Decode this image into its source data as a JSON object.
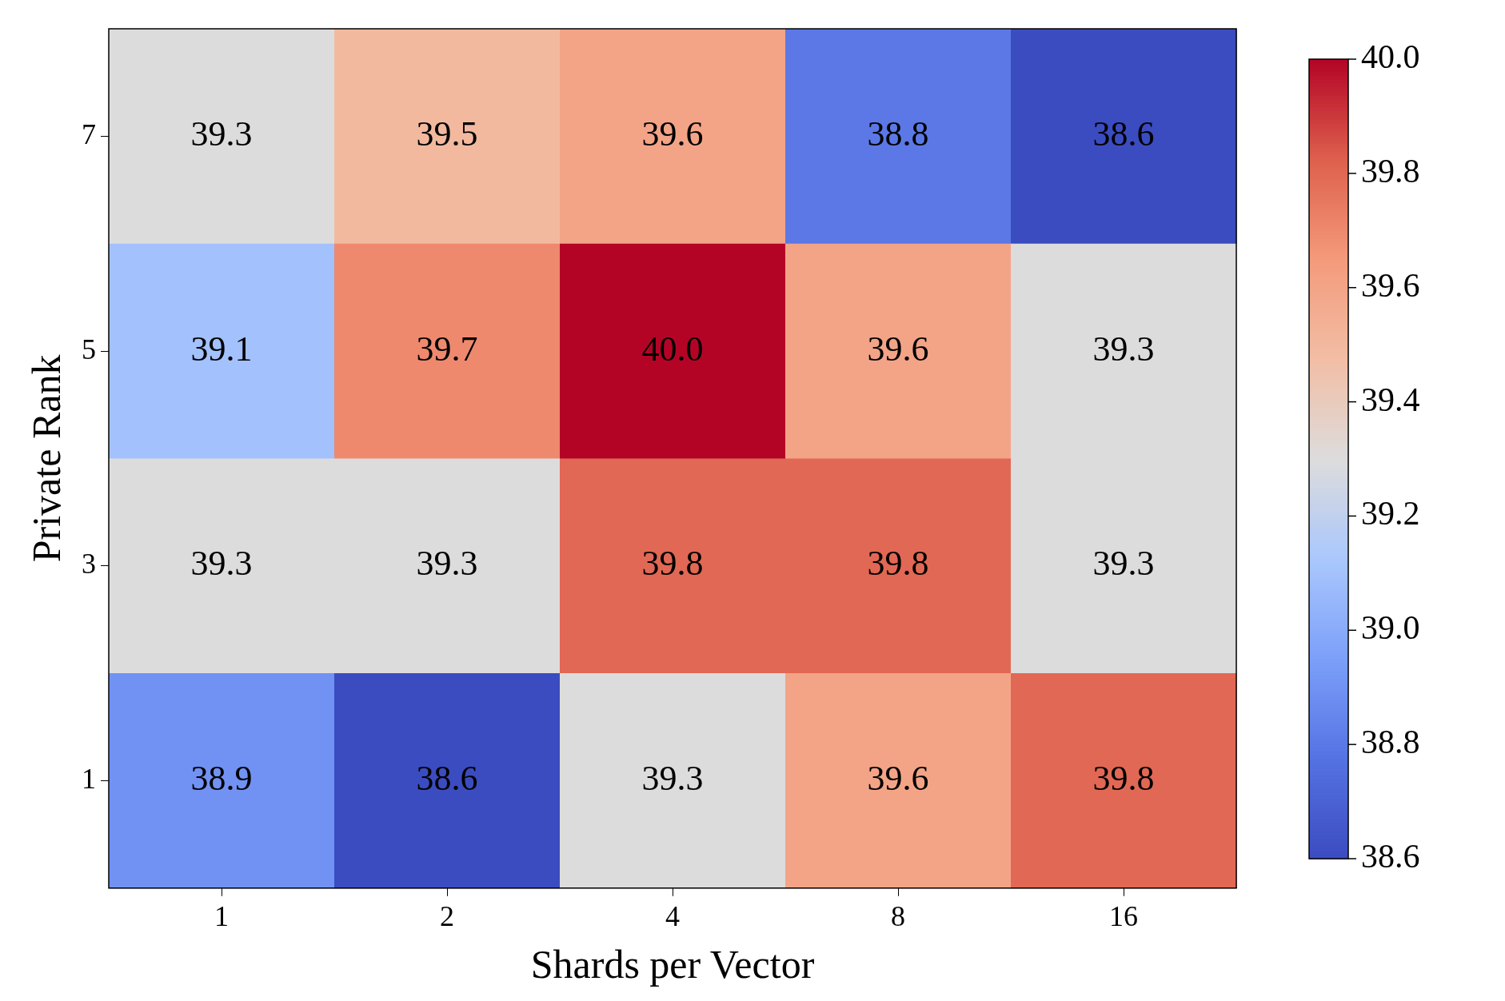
{
  "chart_data": {
    "type": "heatmap",
    "xlabel": "Shards per Vector",
    "ylabel": "Private Rank",
    "categories": [
      "1",
      "2",
      "4",
      "8",
      "16"
    ],
    "y_categories": [
      "7",
      "5",
      "3",
      "1"
    ],
    "cells": [
      [
        39.3,
        39.5,
        39.6,
        38.8,
        38.6
      ],
      [
        39.1,
        39.7,
        40.0,
        39.6,
        39.3
      ],
      [
        39.3,
        39.3,
        39.8,
        39.8,
        39.3
      ],
      [
        38.9,
        38.6,
        39.3,
        39.6,
        39.8
      ]
    ],
    "cell_labels": [
      [
        "39.3",
        "39.5",
        "39.6",
        "38.8",
        "38.6"
      ],
      [
        "39.1",
        "39.7",
        "40.0",
        "39.6",
        "39.3"
      ],
      [
        "39.3",
        "39.3",
        "39.8",
        "39.8",
        "39.3"
      ],
      [
        "38.9",
        "38.6",
        "39.3",
        "39.6",
        "39.8"
      ]
    ],
    "clim": [
      38.6,
      40.0
    ],
    "cticks": [
      38.6,
      38.8,
      {
        "value": 39.0,
        "label": "39.0"
      },
      39.2,
      39.4,
      39.6,
      39.8,
      {
        "value": 40.0,
        "label": "40.0"
      }
    ]
  }
}
